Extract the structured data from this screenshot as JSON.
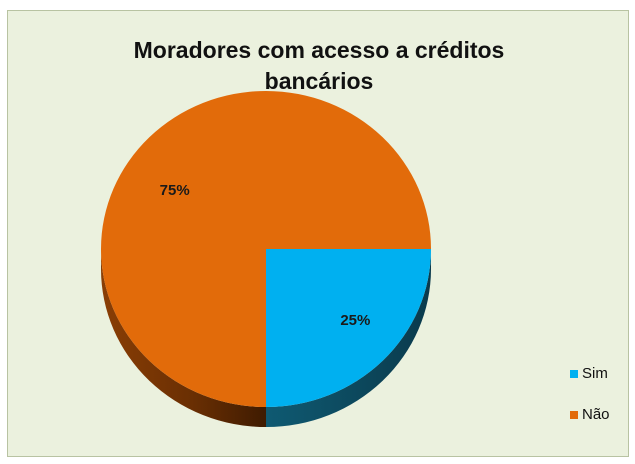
{
  "chart_data": {
    "type": "pie",
    "title": "Moradores com acesso a créditos bancários",
    "categories": [
      "Sim",
      "Não"
    ],
    "values": [
      25,
      75
    ],
    "data_labels": [
      "25%",
      "75%"
    ],
    "colors": [
      "#00b0f0",
      "#e26b0a"
    ],
    "legend_position": "right",
    "style": "3d"
  },
  "title_lines": [
    "Moradores com acesso a créditos",
    "bancários"
  ],
  "legend": [
    {
      "label": "Sim",
      "color": "#00b0f0"
    },
    {
      "label": "Não",
      "color": "#e26b0a"
    }
  ]
}
